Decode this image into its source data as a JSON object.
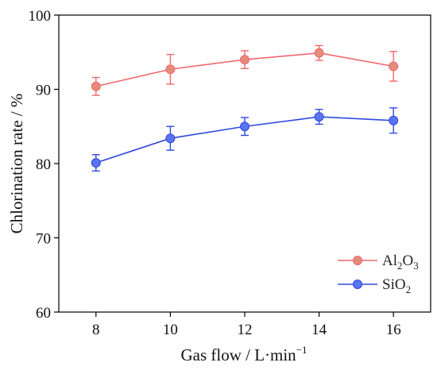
{
  "chart_data": {
    "type": "line",
    "xlabel": "Gas flow / L·min",
    "xlabel_sup": "−1",
    "ylabel": "Chlorination rate / %",
    "xlim": [
      7,
      17
    ],
    "ylim": [
      60,
      100
    ],
    "x_ticks": [
      8,
      10,
      12,
      14,
      16
    ],
    "y_ticks": [
      60,
      70,
      80,
      90,
      100
    ],
    "x": [
      8,
      10,
      12,
      14,
      16
    ],
    "grid": false,
    "legend_position": "bottom-right",
    "series": [
      {
        "name": "Al2O3",
        "name_parts": [
          "Al",
          "2",
          "O",
          "3"
        ],
        "color": "#f0686b",
        "marker_color": "#e58b7c",
        "values": [
          90.4,
          92.7,
          94.0,
          94.9,
          93.1
        ],
        "errors": [
          1.2,
          2.0,
          1.2,
          1.0,
          2.0
        ]
      },
      {
        "name": "SiO2",
        "name_parts": [
          "SiO",
          "2"
        ],
        "color": "#2f49e0",
        "marker_color": "#5a73f0",
        "values": [
          80.1,
          83.4,
          85.0,
          86.3,
          85.8
        ],
        "errors": [
          1.1,
          1.6,
          1.2,
          1.0,
          1.7
        ]
      }
    ]
  }
}
